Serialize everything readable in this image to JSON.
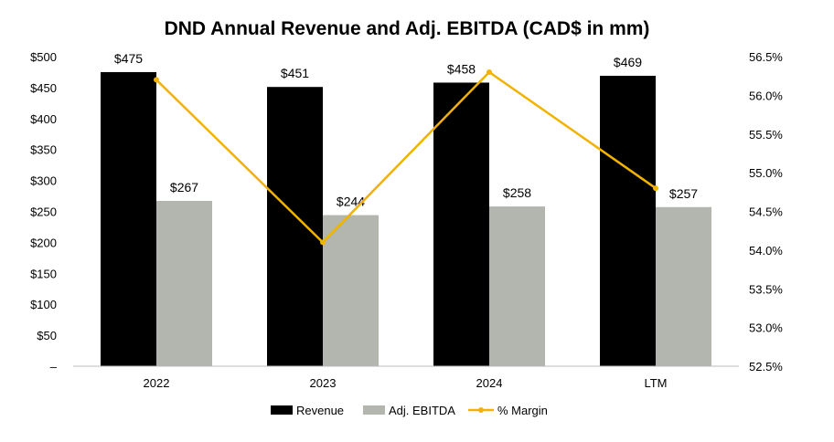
{
  "chart_data": {
    "type": "bar",
    "title": "DND Annual Revenue and Adj. EBITDA (CAD$ in mm)",
    "categories": [
      "2022",
      "2023",
      "2024",
      "LTM"
    ],
    "series": [
      {
        "name": "Revenue",
        "axis": "left",
        "type": "bar",
        "color": "#000000",
        "values": [
          475,
          451,
          458,
          469
        ],
        "labels": [
          "$475",
          "$451",
          "$458",
          "$469"
        ]
      },
      {
        "name": "Adj. EBITDA",
        "axis": "left",
        "type": "bar",
        "color": "#B2B6AF",
        "values": [
          267,
          244,
          258,
          257
        ],
        "labels": [
          "$267",
          "$244",
          "$258",
          "$257"
        ]
      },
      {
        "name": "% Margin",
        "axis": "right",
        "type": "line",
        "color": "#F2B200",
        "values": [
          56.2,
          54.1,
          56.3,
          54.8
        ]
      }
    ],
    "left_axis": {
      "ylim": [
        0,
        500
      ],
      "ticks": [
        0,
        50,
        100,
        150,
        200,
        250,
        300,
        350,
        400,
        450,
        500
      ],
      "tick_labels": [
        "–",
        "$50",
        "$100",
        "$150",
        "$200",
        "$250",
        "$300",
        "$350",
        "$400",
        "$450",
        "$500"
      ]
    },
    "right_axis": {
      "ylim": [
        52.5,
        56.5
      ],
      "ticks": [
        52.5,
        53.0,
        53.5,
        54.0,
        54.5,
        55.0,
        55.5,
        56.0,
        56.5
      ],
      "tick_labels": [
        "52.5%",
        "53.0%",
        "53.5%",
        "54.0%",
        "54.5%",
        "55.0%",
        "55.5%",
        "56.0%",
        "56.5%"
      ]
    },
    "legend": {
      "position": "bottom",
      "entries": [
        "Revenue",
        "Adj. EBITDA",
        "% Margin"
      ]
    },
    "grid": false
  }
}
